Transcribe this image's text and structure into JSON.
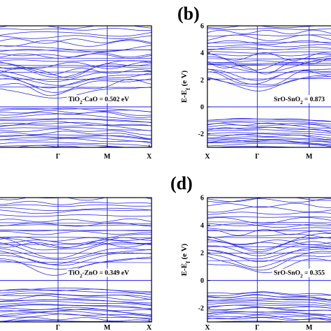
{
  "chart_data": [
    {
      "panel": "a",
      "type": "line",
      "title": "",
      "ylabel": "",
      "ylim": [
        -3,
        6
      ],
      "x_ticks": [
        "X",
        "Γ",
        "M",
        "X"
      ],
      "y_ticks": [],
      "annotation": {
        "prefix": "TiO",
        "sub": "2",
        "suffix": "-CaO = 0.502 eV"
      },
      "band_gap_eV": 0.502,
      "fermi_level": 0,
      "bands": {
        "valence_max_at": "Γ",
        "conduction_min_at": "Γ",
        "conduction_min": 0.5,
        "valence_band_range": [
          -3.0,
          0.0
        ],
        "conduction_band_range": [
          0.5,
          6.0
        ]
      }
    },
    {
      "panel": "b",
      "type": "line",
      "title": "",
      "ylabel": "E-E",
      "ylabel_sub": "f",
      "ylabel_unit": " (e V)",
      "ylim": [
        -3,
        6
      ],
      "x_ticks": [
        "X",
        "Γ",
        "M",
        "X"
      ],
      "y_ticks": [
        -2,
        0,
        2,
        4,
        6
      ],
      "annotation": {
        "prefix": "SrO-SnO",
        "sub": "2",
        "suffix": " = 0.873"
      },
      "band_gap_eV": 0.873,
      "fermi_level": 0,
      "bands": {
        "valence_max_at": "Γ",
        "conduction_min_at": "Γ",
        "conduction_min": 1.0,
        "valence_band_range": [
          -3.0,
          -0.8
        ],
        "conduction_band_range": [
          1.0,
          6.0
        ]
      }
    },
    {
      "panel": "c",
      "type": "line",
      "title": "",
      "ylabel": "",
      "ylim": [
        -3,
        6
      ],
      "x_ticks": [
        "X",
        "Γ",
        "M",
        "X"
      ],
      "y_ticks": [],
      "annotation": {
        "prefix": "TiO",
        "sub": "2",
        "suffix": "-ZnO = 0.349 eV"
      },
      "band_gap_eV": 0.349,
      "fermi_level": 0,
      "bands": {
        "valence_max_at": "Γ",
        "conduction_min_at": "Γ",
        "conduction_min": 0.4,
        "valence_band_range": [
          -3.0,
          -0.5
        ],
        "conduction_band_range": [
          0.4,
          6.0
        ]
      }
    },
    {
      "panel": "d",
      "type": "line",
      "title": "",
      "ylabel": "E-E",
      "ylabel_sub": "f",
      "ylabel_unit": " (e V)",
      "ylim": [
        -3,
        6
      ],
      "x_ticks": [
        "X",
        "Γ",
        "M",
        "X"
      ],
      "y_ticks": [
        -2,
        0,
        2,
        4,
        6
      ],
      "annotation": {
        "prefix": "SrO-SnO",
        "sub": "2",
        "suffix": " = 0.355"
      },
      "band_gap_eV": 0.355,
      "fermi_level": 0,
      "bands": {
        "valence_max_at": "Γ",
        "conduction_min_at": "Γ",
        "conduction_min": 0.4,
        "valence_band_range": [
          -3.0,
          -0.8
        ],
        "conduction_band_range": [
          0.4,
          6.0
        ]
      }
    }
  ],
  "panel_labels": [
    "(b)",
    "(d)"
  ],
  "colors": {
    "band": "#1f1fe6",
    "axis": "#000000"
  }
}
